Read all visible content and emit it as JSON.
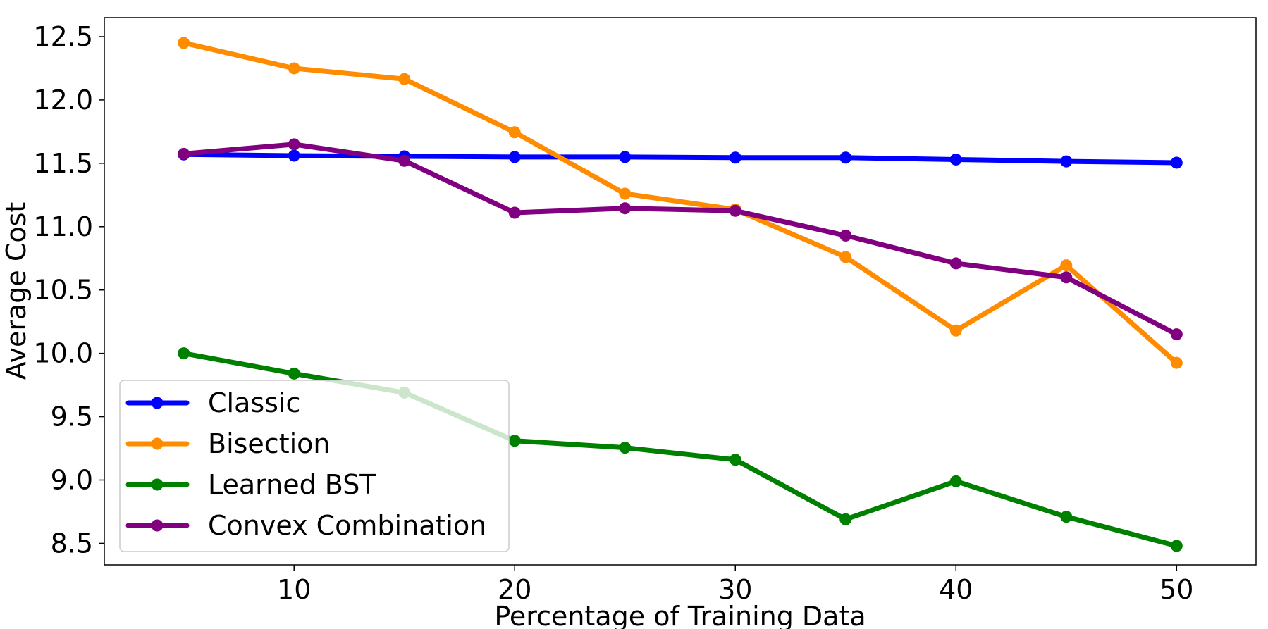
{
  "chart_data": {
    "type": "line",
    "title": "",
    "xlabel": "Percentage of Training Data",
    "ylabel": "Average Cost",
    "x": [
      5,
      10,
      15,
      20,
      25,
      30,
      35,
      40,
      45,
      50
    ],
    "xlim": [
      1.4,
      53.6
    ],
    "ylim": [
      8.33,
      12.65
    ],
    "xticks": [
      10,
      20,
      30,
      40,
      50
    ],
    "xtick_labels": [
      "10",
      "20",
      "30",
      "40",
      "50"
    ],
    "yticks": [
      8.5,
      9.0,
      9.5,
      10.0,
      10.5,
      11.0,
      11.5,
      12.0,
      12.5
    ],
    "ytick_labels": [
      "8.5",
      "9.0",
      "9.5",
      "10.0",
      "10.5",
      "11.0",
      "11.5",
      "12.0",
      "12.5"
    ],
    "grid": false,
    "legend_position": "lower-left",
    "series": [
      {
        "name": "Classic",
        "color": "#0000ff",
        "values": [
          11.57,
          11.56,
          11.555,
          11.55,
          11.55,
          11.545,
          11.545,
          11.53,
          11.515,
          11.505
        ]
      },
      {
        "name": "Bisection",
        "color": "#ff8c00",
        "values": [
          12.45,
          12.25,
          12.165,
          11.745,
          11.26,
          11.135,
          10.76,
          10.18,
          10.695,
          9.925
        ]
      },
      {
        "name": "Learned BST",
        "color": "#008000",
        "values": [
          10.0,
          9.84,
          9.69,
          9.31,
          9.255,
          9.16,
          8.69,
          8.99,
          8.71,
          8.48
        ]
      },
      {
        "name": "Convex Combination",
        "color": "#800080",
        "values": [
          11.575,
          11.65,
          11.52,
          11.11,
          11.145,
          11.125,
          10.93,
          10.71,
          10.6,
          10.15
        ]
      }
    ]
  }
}
